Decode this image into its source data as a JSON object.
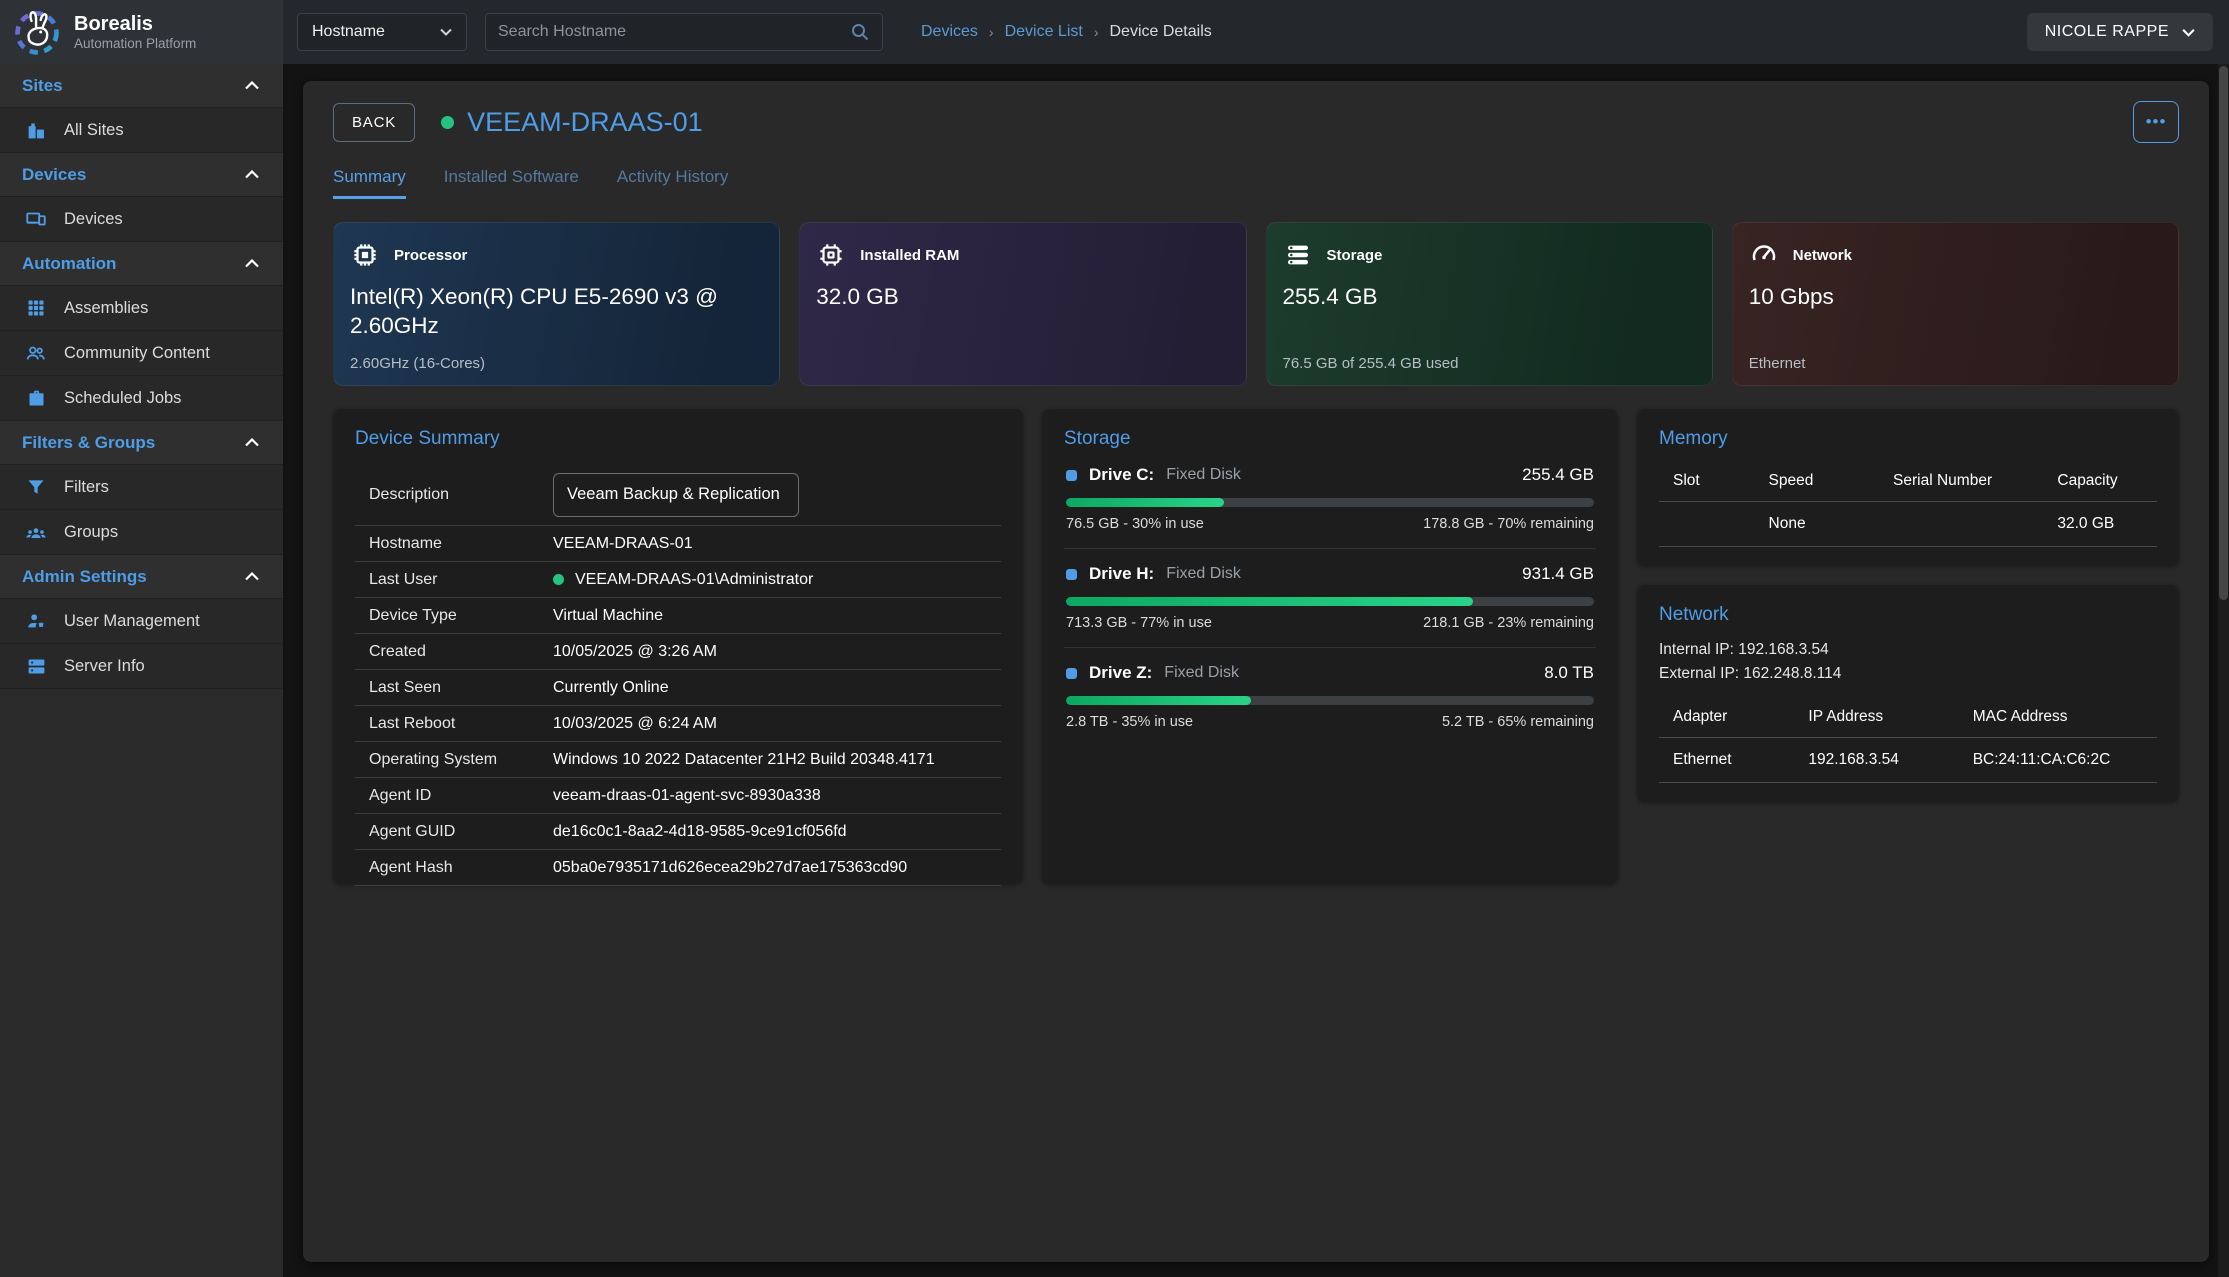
{
  "brand": {
    "name": "Borealis",
    "subtitle": "Automation Platform"
  },
  "topbar": {
    "filter_label": "Hostname",
    "search_placeholder": "Search Hostname",
    "breadcrumbs": {
      "first": "Devices",
      "second": "Device List",
      "current": "Device Details"
    },
    "user": "NICOLE RAPPE"
  },
  "sidebar": {
    "sections": [
      {
        "label": "Sites",
        "items": [
          {
            "label": "All Sites"
          }
        ]
      },
      {
        "label": "Devices",
        "items": [
          {
            "label": "Devices"
          }
        ]
      },
      {
        "label": "Automation",
        "items": [
          {
            "label": "Assemblies"
          },
          {
            "label": "Community Content"
          },
          {
            "label": "Scheduled Jobs"
          }
        ]
      },
      {
        "label": "Filters & Groups",
        "items": [
          {
            "label": "Filters"
          },
          {
            "label": "Groups"
          }
        ]
      },
      {
        "label": "Admin Settings",
        "items": [
          {
            "label": "User Management"
          },
          {
            "label": "Server Info"
          }
        ]
      }
    ]
  },
  "header": {
    "back_label": "BACK",
    "device_name": "VEEAM-DRAAS-01",
    "status": "online",
    "menu_label": "•••"
  },
  "tabs": [
    {
      "label": "Summary",
      "active": true
    },
    {
      "label": "Installed Software",
      "active": false
    },
    {
      "label": "Activity History",
      "active": false
    }
  ],
  "stat_cards": [
    {
      "label": "Processor",
      "value": "Intel(R) Xeon(R) CPU E5-2690 v3 @ 2.60GHz",
      "subtext": "2.60GHz (16-Cores)",
      "accent": "#1f3752"
    },
    {
      "label": "Installed RAM",
      "value": "32.0 GB",
      "subtext": "",
      "accent": "#2f2848"
    },
    {
      "label": "Storage",
      "value": "255.4 GB",
      "subtext": "76.5 GB of 255.4 GB used",
      "accent": "#1d3c2d"
    },
    {
      "label": "Network",
      "value": "10 Gbps",
      "subtext": "Ethernet",
      "accent": "#382423"
    }
  ],
  "device_summary": {
    "title": "Device Summary",
    "description_label": "Description",
    "description_value": "Veeam Backup & Replication",
    "rows": [
      {
        "label": "Hostname",
        "value": "VEEAM-DRAAS-01"
      },
      {
        "label": "Last User",
        "value": "VEEAM-DRAAS-01\\Administrator"
      },
      {
        "label": "Device Type",
        "value": "Virtual Machine"
      },
      {
        "label": "Created",
        "value": "10/05/2025 @ 3:26 AM"
      },
      {
        "label": "Last Seen",
        "value": "Currently Online"
      },
      {
        "label": "Last Reboot",
        "value": "10/03/2025 @ 6:24 AM"
      },
      {
        "label": "Operating System",
        "value": "Windows 10 2022 Datacenter 21H2 Build 20348.4171"
      },
      {
        "label": "Agent ID",
        "value": "veeam-draas-01-agent-svc-8930a338"
      },
      {
        "label": "Agent GUID",
        "value": "de16c0c1-8aa2-4d18-9585-9ce91cf056fd"
      },
      {
        "label": "Agent Hash",
        "value": "05ba0e7935171d626ecea29b27d7ae175363cd90"
      }
    ]
  },
  "storage_panel": {
    "title": "Storage",
    "drives": [
      {
        "name": "Drive C:",
        "type": "Fixed Disk",
        "size": "255.4 GB",
        "percent_used": 30,
        "used_text": "76.5 GB - 30% in use",
        "remaining_text": "178.8 GB - 70% remaining"
      },
      {
        "name": "Drive H:",
        "type": "Fixed Disk",
        "size": "931.4 GB",
        "percent_used": 77,
        "used_text": "713.3 GB - 77% in use",
        "remaining_text": "218.1 GB - 23% remaining"
      },
      {
        "name": "Drive Z:",
        "type": "Fixed Disk",
        "size": "8.0 TB",
        "percent_used": 35,
        "used_text": "2.8 TB - 35% in use",
        "remaining_text": "5.2 TB - 65% remaining"
      }
    ]
  },
  "memory_panel": {
    "title": "Memory",
    "columns": {
      "slot": "Slot",
      "speed": "Speed",
      "serial": "Serial Number",
      "capacity": "Capacity"
    },
    "row": {
      "slot": "",
      "speed": "None",
      "serial": "",
      "capacity": "32.0 GB"
    }
  },
  "network_panel": {
    "title": "Network",
    "internal_ip": "Internal IP: 192.168.3.54",
    "external_ip": "External IP: 162.248.8.114",
    "columns": {
      "adapter": "Adapter",
      "ip": "IP Address",
      "mac": "MAC Address"
    },
    "row": {
      "adapter": "Ethernet",
      "ip": "192.168.3.54",
      "mac": "BC:24:11:CA:C6:2C"
    }
  },
  "colors": {
    "accent_blue": "#4e9de6",
    "link_blue": "#5b9bd5",
    "online_green": "#26c281",
    "progress_green_start": "#0ca862",
    "progress_green_end": "#2ad389"
  }
}
